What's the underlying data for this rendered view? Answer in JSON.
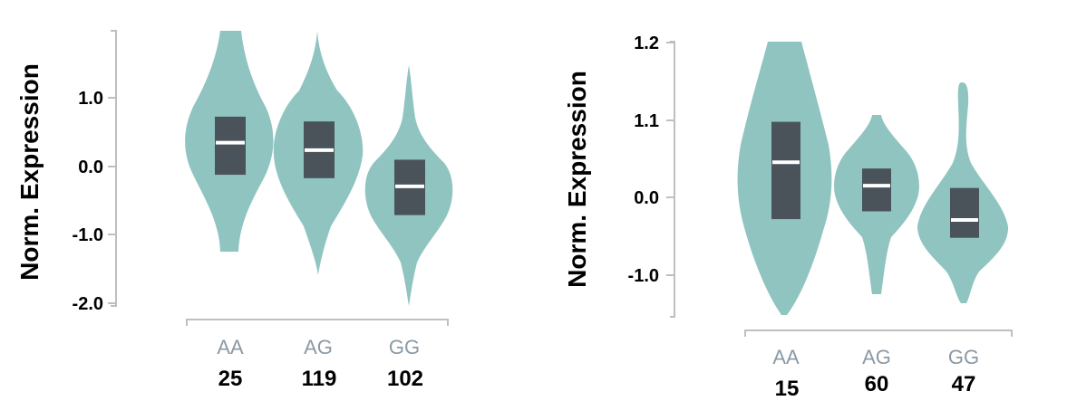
{
  "chart_data": [
    {
      "type": "violin",
      "ylabel": "Norm. Expression",
      "yticks": [
        "1.0",
        "0.0",
        "-1.0",
        "-2.0"
      ],
      "ylim": [
        -2.05,
        2.0
      ],
      "violin_color": "#8fc4c0",
      "box_color": "#4a535a",
      "median_color": "#ffffff",
      "categories": [
        "AA",
        "AG",
        "GG"
      ],
      "counts": [
        "25",
        "119",
        "102"
      ],
      "groups": [
        {
          "name": "AA",
          "min": -1.25,
          "max": 2.0,
          "q1": -0.12,
          "q3": 0.73,
          "median": 0.35
        },
        {
          "name": "AG",
          "min": -1.58,
          "max": 2.0,
          "q1": -0.17,
          "q3": 0.66,
          "median": 0.24
        },
        {
          "name": "GG",
          "min": -2.0,
          "max": 1.48,
          "q1": -0.71,
          "q3": 0.1,
          "median": -0.29
        }
      ]
    },
    {
      "type": "violin",
      "ylabel": "Norm. Expression",
      "yticks": [
        "1.2",
        "1.1",
        "0.0",
        "-1.0"
      ],
      "ylim": [
        -1.55,
        2.0
      ],
      "violin_color": "#8fc4c0",
      "box_color": "#4a535a",
      "median_color": "#ffffff",
      "categories": [
        "AA",
        "AG",
        "GG"
      ],
      "counts": [
        "15",
        "60",
        "47"
      ],
      "groups": [
        {
          "name": "AA",
          "min": -1.5,
          "max": 2.0,
          "q1": -0.28,
          "q3": 0.97,
          "median": 0.45
        },
        {
          "name": "AG",
          "min": -1.22,
          "max": 1.1,
          "q1": -0.18,
          "q3": 0.37,
          "median": 0.15
        },
        {
          "name": "GG",
          "min": -1.33,
          "max": 1.5,
          "q1": -0.52,
          "q3": 0.12,
          "median": -0.29
        }
      ]
    }
  ]
}
